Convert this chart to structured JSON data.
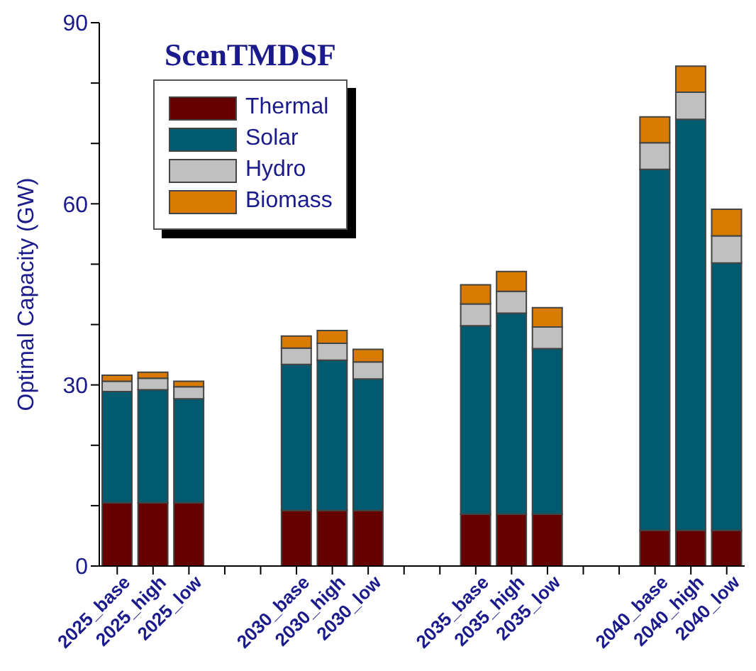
{
  "chart_data": {
    "type": "bar",
    "title": "ScenTMDSF",
    "ylabel": "Optimal Capacity (GW)",
    "stacked": true,
    "categories": [
      "2025_base",
      "2025_high",
      "2025_low",
      null,
      null,
      "2030_base",
      "2030_high",
      "2030_low",
      null,
      null,
      "2035_base",
      "2035_high",
      "2035_low",
      null,
      null,
      "2040_base",
      "2040_high",
      "2040_low"
    ],
    "series": [
      {
        "name": "Thermal",
        "color": "#660000",
        "values": [
          10.5,
          10.5,
          10.5,
          null,
          null,
          9.2,
          9.2,
          9.2,
          null,
          null,
          8.6,
          8.6,
          8.6,
          null,
          null,
          5.9,
          5.9,
          5.9
        ]
      },
      {
        "name": "Solar",
        "color": "#005a70",
        "values": [
          18.4,
          18.7,
          17.2,
          null,
          null,
          24.2,
          24.9,
          21.8,
          null,
          null,
          31.2,
          33.3,
          27.4,
          null,
          null,
          59.8,
          68.1,
          44.3
        ]
      },
      {
        "name": "Hydro",
        "color": "#c0c0c0",
        "values": [
          1.7,
          1.9,
          2.0,
          null,
          null,
          2.7,
          2.8,
          2.8,
          null,
          null,
          3.6,
          3.6,
          3.6,
          null,
          null,
          4.4,
          4.5,
          4.5
        ]
      },
      {
        "name": "Biomass",
        "color": "#d97b00",
        "values": [
          1.0,
          1.0,
          0.9,
          null,
          null,
          2.0,
          2.1,
          2.1,
          null,
          null,
          3.2,
          3.3,
          3.2,
          null,
          null,
          4.3,
          4.3,
          4.4
        ]
      }
    ],
    "ylim": [
      0,
      90
    ],
    "yticks": [
      0,
      {
        "value": 10,
        "label": null
      },
      {
        "value": 20,
        "label": null
      },
      30,
      {
        "value": 40,
        "label": null
      },
      {
        "value": 50,
        "label": null
      },
      60,
      {
        "value": 70,
        "label": null
      },
      {
        "value": 80,
        "label": null
      },
      90
    ],
    "grid": false,
    "legend": "top left"
  }
}
